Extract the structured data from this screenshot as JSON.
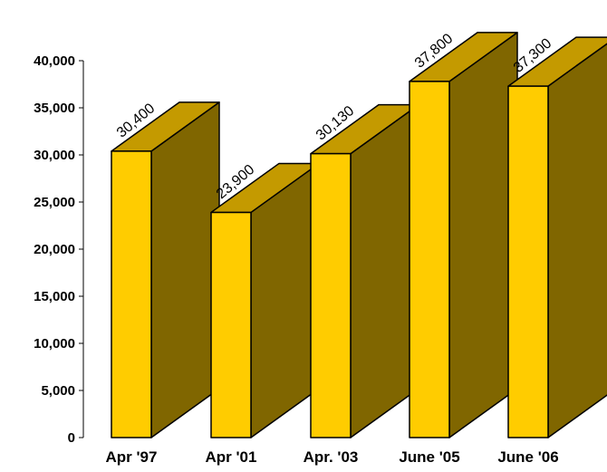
{
  "chart_data": {
    "type": "bar",
    "categories": [
      "Apr '97",
      "Apr '01",
      "Apr. '03",
      "June '05",
      "June '06"
    ],
    "values": [
      30400,
      23900,
      30130,
      37800,
      37300
    ],
    "data_labels": [
      "30,400",
      "23,900",
      "30,130",
      "37,800",
      "37,300"
    ],
    "ylim": [
      0,
      40000
    ],
    "yticks": [
      0,
      5000,
      10000,
      15000,
      20000,
      25000,
      30000,
      35000,
      40000
    ],
    "ytick_labels": [
      "0",
      "5,000",
      "10,000",
      "15,000",
      "20,000",
      "25,000",
      "30,000",
      "35,000",
      "40,000"
    ],
    "grid": false,
    "three_d": true,
    "colors": {
      "front": "#FFCC00",
      "top": "#C49A00",
      "side": "#806600",
      "outline": "#000000"
    }
  }
}
